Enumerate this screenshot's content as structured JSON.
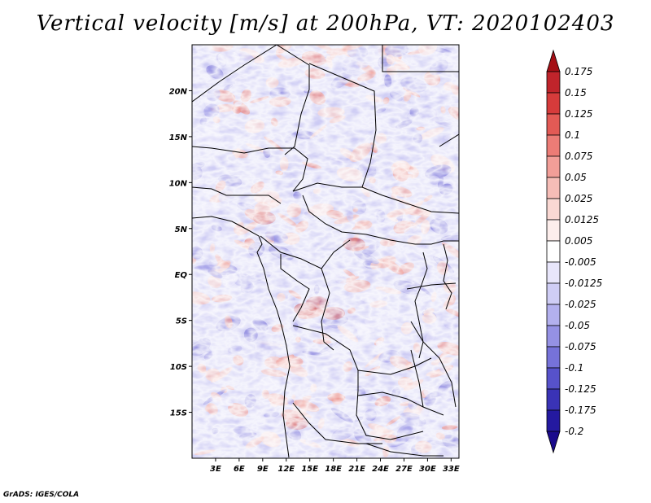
{
  "title": "Vertical velocity [m/s] at 200hPa, VT: 2020102403",
  "credit": "GrADS: IGES/COLA",
  "map": {
    "lon_range": [
      0,
      34
    ],
    "lat_range": [
      -20,
      25
    ],
    "lat_ticks": [
      {
        "lat": 20,
        "label": "20N"
      },
      {
        "lat": 15,
        "label": "15N"
      },
      {
        "lat": 10,
        "label": "10N"
      },
      {
        "lat": 5,
        "label": "5N"
      },
      {
        "lat": 0,
        "label": "EQ"
      },
      {
        "lat": -5,
        "label": "5S"
      },
      {
        "lat": -10,
        "label": "10S"
      },
      {
        "lat": -15,
        "label": "15S"
      }
    ],
    "lon_ticks": [
      {
        "lon": 3,
        "label": "3E"
      },
      {
        "lon": 6,
        "label": "6E"
      },
      {
        "lon": 9,
        "label": "9E"
      },
      {
        "lon": 12,
        "label": "12E"
      },
      {
        "lon": 15,
        "label": "15E"
      },
      {
        "lon": 18,
        "label": "18E"
      },
      {
        "lon": 21,
        "label": "21E"
      },
      {
        "lon": 24,
        "label": "24E"
      },
      {
        "lon": 27,
        "label": "27E"
      },
      {
        "lon": 30,
        "label": "30E"
      },
      {
        "lon": 33,
        "label": "33E"
      }
    ]
  },
  "colorbar": {
    "labels": [
      "0.175",
      "0.15",
      "0.125",
      "0.1",
      "0.075",
      "0.05",
      "0.025",
      "0.0125",
      "0.005",
      "-0.005",
      "-0.0125",
      "-0.025",
      "-0.05",
      "-0.075",
      "-0.1",
      "-0.125",
      "-0.175",
      "-0.2"
    ],
    "colors": [
      "#a50f15",
      "#c0242b",
      "#d63b3b",
      "#e35a55",
      "#ec7c76",
      "#f29e98",
      "#f6bdb7",
      "#fad8d3",
      "#fdeeec",
      "#ffffff",
      "#e8e6fb",
      "#cfcdf5",
      "#b3b0ee",
      "#9591e4",
      "#7672d9",
      "#5752cb",
      "#3a33b6",
      "#2419a0",
      "#1a0a8c"
    ]
  },
  "chart_data": {
    "type": "heatmap",
    "title": "Vertical velocity [m/s] at 200hPa, VT: 2020102403",
    "variable": "Vertical velocity",
    "units": "m/s",
    "level": "200hPa",
    "valid_time": "2020102403",
    "x_range": [
      0,
      34
    ],
    "y_range": [
      -20,
      25
    ],
    "levels": [
      -0.2,
      -0.175,
      -0.125,
      -0.1,
      -0.075,
      -0.05,
      -0.025,
      -0.0125,
      -0.005,
      0.005,
      0.0125,
      0.025,
      0.05,
      0.075,
      0.1,
      0.125,
      0.15,
      0.175
    ]
  }
}
